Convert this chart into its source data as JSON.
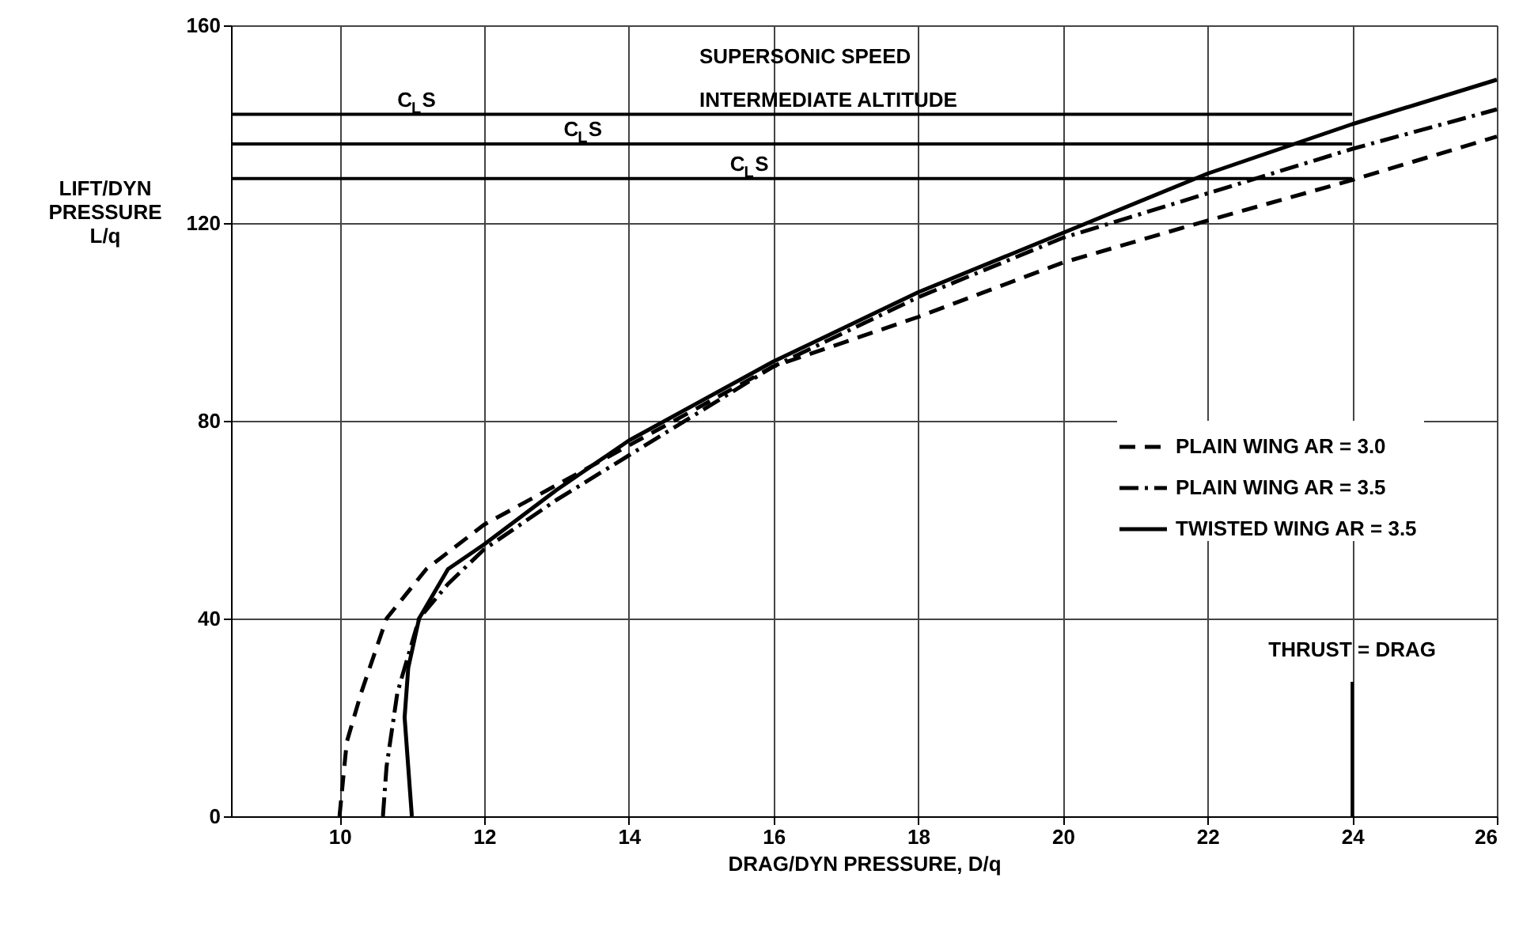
{
  "chart_data": {
    "type": "line",
    "xlabel": "DRAG/DYN PRESSURE, D/q",
    "ylabel": "LIFT/DYN\nPRESSURE\nL/q",
    "xlim": [
      8.5,
      26
    ],
    "ylim": [
      0,
      160
    ],
    "xticks": [
      10,
      12,
      14,
      16,
      18,
      20,
      22,
      24,
      26
    ],
    "yticks": [
      0,
      40,
      80,
      120,
      160
    ],
    "grid": true,
    "legend": "right",
    "marker": "none",
    "annotations": [
      "SUPERSONIC SPEED",
      "INTERMEDIATE ALTITUDE"
    ],
    "ref_lines": [
      {
        "axis": "y",
        "value": 142,
        "label": "C$_{L}$S"
      },
      {
        "axis": "y",
        "value": 136,
        "label": "C$_{L}$S"
      },
      {
        "axis": "y",
        "value": 129,
        "label": "C$_{L}$S"
      },
      {
        "axis": "x",
        "value": 24,
        "label": "THRUST = DRAG"
      }
    ],
    "series": [
      {
        "name": "PLAIN WING      AR = 3.0",
        "color": "#000000",
        "line_style": "dashed",
        "x": [
          10,
          10.1,
          10.3,
          10.65,
          11.2,
          12,
          13,
          14,
          16,
          18,
          20,
          22,
          24,
          26
        ],
        "values": [
          0,
          15,
          25,
          40,
          50,
          59,
          67,
          75,
          91,
          101,
          112,
          120.5,
          128.7,
          137.5
        ]
      },
      {
        "name": "PLAIN WING      AR = 3.5",
        "color": "#000000",
        "line_style": "dashdot",
        "x": [
          10.6,
          10.65,
          10.8,
          11.1,
          11.5,
          12,
          13,
          14,
          16,
          18,
          20,
          22,
          24,
          26
        ],
        "values": [
          0,
          10,
          25,
          40,
          47,
          54,
          64,
          73,
          91,
          105,
          117,
          126,
          135,
          143
        ]
      },
      {
        "name": "TWISTED WING  AR = 3.5",
        "color": "#000000",
        "line_style": "solid",
        "x": [
          11,
          10.95,
          10.9,
          10.95,
          11.1,
          11.5,
          12,
          13,
          14,
          16,
          18,
          20,
          22,
          24,
          26
        ],
        "values": [
          0,
          10,
          20,
          30,
          40,
          50,
          55,
          66,
          76,
          92,
          106,
          118,
          130,
          140,
          149
        ]
      }
    ]
  }
}
